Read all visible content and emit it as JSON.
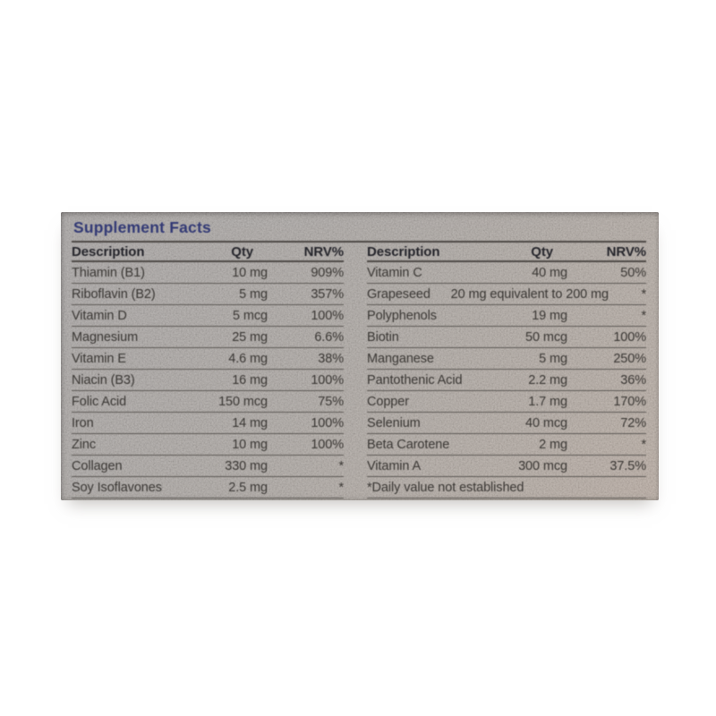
{
  "label": {
    "title": "Supplement Facts",
    "left_table": {
      "headers": [
        "Description",
        "Qty",
        "NRV%"
      ],
      "rows": [
        {
          "name": "Thiamin (B1)",
          "qty": "10 mg",
          "nrv": "909%"
        },
        {
          "name": "Riboflavin (B2)",
          "qty": "5 mg",
          "nrv": "357%"
        },
        {
          "name": "Vitamin D",
          "qty": "5 mcg",
          "nrv": "100%"
        },
        {
          "name": "Magnesium",
          "qty": "25 mg",
          "nrv": "6.6%"
        },
        {
          "name": "Vitamin E",
          "qty": "4.6 mg",
          "nrv": "38%"
        },
        {
          "name": "Niacin (B3)",
          "qty": "16 mg",
          "nrv": "100%"
        },
        {
          "name": "Folic Acid",
          "qty": "150 mcg",
          "nrv": "75%"
        },
        {
          "name": "Iron",
          "qty": "14 mg",
          "nrv": "100%"
        },
        {
          "name": "Zinc",
          "qty": "10 mg",
          "nrv": "100%"
        },
        {
          "name": "Collagen",
          "qty": "330 mg",
          "nrv": "*"
        },
        {
          "name": "Soy Isoflavones",
          "qty": "2.5 mg",
          "nrv": "*"
        }
      ]
    },
    "right_table": {
      "headers": [
        "Description",
        "Qty",
        "NRV%"
      ],
      "rows": [
        {
          "name": "Vitamin C",
          "qty": "40 mg",
          "nrv": "50%"
        },
        {
          "name": "Grapeseed",
          "qty": "20 mg equivalent to 200 mg",
          "nrv": "*"
        },
        {
          "name": "Polyphenols",
          "qty": "19 mg",
          "nrv": "*"
        },
        {
          "name": "Biotin",
          "qty": "50 mcg",
          "nrv": "100%"
        },
        {
          "name": "Manganese",
          "qty": "5 mg",
          "nrv": "250%"
        },
        {
          "name": "Pantothenic Acid",
          "qty": "2.2 mg",
          "nrv": "36%"
        },
        {
          "name": "Copper",
          "qty": "1.7 mg",
          "nrv": "170%"
        },
        {
          "name": "Selenium",
          "qty": "40 mcg",
          "nrv": "72%"
        },
        {
          "name": "Beta Carotene",
          "qty": "2 mg",
          "nrv": "*"
        },
        {
          "name": "Vitamin A",
          "qty": "300 mcg",
          "nrv": "37.5%"
        }
      ],
      "footnote": "*Daily value not established"
    },
    "colors": {
      "title_blue": "#333a75",
      "header_text": "#26262c",
      "body_text": "#3a3734",
      "rule": "#5d5955",
      "label_base": "#aba5a1"
    }
  }
}
